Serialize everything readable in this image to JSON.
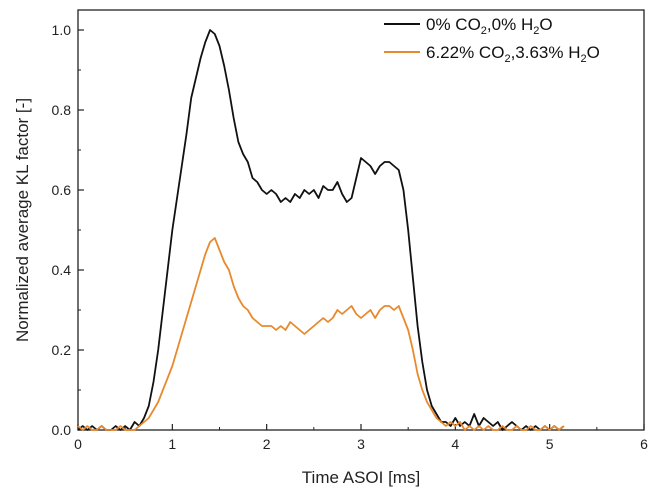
{
  "chart_data": {
    "type": "line",
    "title": "",
    "xlabel": "Time ASOI [ms]",
    "ylabel": "Normalized average KL factor [-]",
    "xlim": [
      0,
      6
    ],
    "ylim": [
      0,
      1.05
    ],
    "x_ticks": [
      "0",
      "1",
      "2",
      "3",
      "4",
      "5",
      "6"
    ],
    "y_ticks": [
      "0.0",
      "0.2",
      "0.4",
      "0.6",
      "0.8",
      "1.0"
    ],
    "grid": false,
    "legend_position": "top-right",
    "legend": [
      {
        "parts": [
          [
            "0% CO",
            ""
          ],
          [
            "2",
            "sub"
          ],
          [
            ",0% H",
            ""
          ],
          [
            "2",
            "sub"
          ],
          [
            "O",
            ""
          ]
        ]
      },
      {
        "parts": [
          [
            "6.22% CO",
            ""
          ],
          [
            "2",
            "sub"
          ],
          [
            ",3.63% H",
            ""
          ],
          [
            "2",
            "sub"
          ],
          [
            "O",
            ""
          ]
        ]
      }
    ],
    "series": [
      {
        "color": "#111111",
        "x": [
          0.0,
          0.05,
          0.1,
          0.15,
          0.2,
          0.25,
          0.3,
          0.35,
          0.4,
          0.45,
          0.5,
          0.55,
          0.6,
          0.65,
          0.7,
          0.75,
          0.8,
          0.85,
          0.9,
          0.95,
          1.0,
          1.05,
          1.1,
          1.15,
          1.2,
          1.25,
          1.3,
          1.35,
          1.4,
          1.45,
          1.5,
          1.55,
          1.6,
          1.65,
          1.7,
          1.75,
          1.8,
          1.85,
          1.9,
          1.95,
          2.0,
          2.05,
          2.1,
          2.15,
          2.2,
          2.25,
          2.3,
          2.35,
          2.4,
          2.45,
          2.5,
          2.55,
          2.6,
          2.65,
          2.7,
          2.75,
          2.8,
          2.85,
          2.9,
          2.95,
          3.0,
          3.05,
          3.1,
          3.15,
          3.2,
          3.25,
          3.3,
          3.35,
          3.4,
          3.45,
          3.5,
          3.55,
          3.6,
          3.65,
          3.7,
          3.75,
          3.8,
          3.85,
          3.9,
          3.95,
          4.0,
          4.05,
          4.1,
          4.15,
          4.2,
          4.25,
          4.3,
          4.35,
          4.4,
          4.45,
          4.5,
          4.55,
          4.6,
          4.65,
          4.7,
          4.75,
          4.8,
          4.85,
          4.9,
          4.95,
          5.0,
          5.05,
          5.1,
          5.15
        ],
        "y": [
          0.0,
          0.01,
          0.0,
          0.01,
          0.0,
          0.01,
          0.0,
          0.0,
          0.01,
          0.0,
          0.01,
          0.0,
          0.02,
          0.01,
          0.03,
          0.06,
          0.12,
          0.2,
          0.3,
          0.4,
          0.5,
          0.58,
          0.66,
          0.74,
          0.83,
          0.88,
          0.93,
          0.97,
          1.0,
          0.99,
          0.96,
          0.91,
          0.85,
          0.78,
          0.72,
          0.69,
          0.67,
          0.63,
          0.62,
          0.6,
          0.59,
          0.6,
          0.59,
          0.57,
          0.58,
          0.57,
          0.59,
          0.58,
          0.6,
          0.59,
          0.6,
          0.58,
          0.61,
          0.6,
          0.6,
          0.62,
          0.59,
          0.57,
          0.58,
          0.63,
          0.68,
          0.67,
          0.66,
          0.64,
          0.66,
          0.67,
          0.67,
          0.66,
          0.65,
          0.6,
          0.5,
          0.38,
          0.26,
          0.17,
          0.1,
          0.06,
          0.04,
          0.02,
          0.02,
          0.01,
          0.03,
          0.01,
          0.02,
          0.01,
          0.04,
          0.01,
          0.03,
          0.02,
          0.01,
          0.02,
          0.0,
          0.01,
          0.02,
          0.01,
          0.0,
          0.01,
          0.0,
          0.01,
          0.0,
          0.01,
          0.0,
          0.01,
          0.0,
          0.01
        ]
      },
      {
        "color": "#E8892E",
        "x": [
          0.0,
          0.05,
          0.1,
          0.15,
          0.2,
          0.25,
          0.3,
          0.35,
          0.4,
          0.45,
          0.5,
          0.55,
          0.6,
          0.65,
          0.7,
          0.75,
          0.8,
          0.85,
          0.9,
          0.95,
          1.0,
          1.05,
          1.1,
          1.15,
          1.2,
          1.25,
          1.3,
          1.35,
          1.4,
          1.45,
          1.5,
          1.55,
          1.6,
          1.65,
          1.7,
          1.75,
          1.8,
          1.85,
          1.9,
          1.95,
          2.0,
          2.05,
          2.1,
          2.15,
          2.2,
          2.25,
          2.3,
          2.35,
          2.4,
          2.45,
          2.5,
          2.55,
          2.6,
          2.65,
          2.7,
          2.75,
          2.8,
          2.85,
          2.9,
          2.95,
          3.0,
          3.05,
          3.1,
          3.15,
          3.2,
          3.25,
          3.3,
          3.35,
          3.4,
          3.45,
          3.5,
          3.55,
          3.6,
          3.65,
          3.7,
          3.75,
          3.8,
          3.85,
          3.9,
          3.95,
          4.0,
          4.05,
          4.1,
          4.15,
          4.2,
          4.25,
          4.3,
          4.35,
          4.4,
          4.45,
          4.5,
          4.55,
          4.6,
          4.65,
          4.7,
          4.75,
          4.8,
          4.85,
          4.9,
          4.95,
          5.0,
          5.05,
          5.1,
          5.15
        ],
        "y": [
          0.01,
          0.0,
          0.01,
          0.0,
          0.0,
          0.01,
          0.0,
          0.0,
          0.0,
          0.01,
          0.0,
          0.0,
          0.0,
          0.01,
          0.02,
          0.03,
          0.05,
          0.07,
          0.1,
          0.13,
          0.16,
          0.2,
          0.24,
          0.28,
          0.32,
          0.36,
          0.4,
          0.44,
          0.47,
          0.48,
          0.45,
          0.42,
          0.4,
          0.36,
          0.33,
          0.31,
          0.3,
          0.28,
          0.27,
          0.26,
          0.26,
          0.26,
          0.25,
          0.26,
          0.25,
          0.27,
          0.26,
          0.25,
          0.24,
          0.25,
          0.26,
          0.27,
          0.28,
          0.27,
          0.28,
          0.3,
          0.29,
          0.3,
          0.31,
          0.29,
          0.28,
          0.29,
          0.3,
          0.28,
          0.3,
          0.31,
          0.31,
          0.3,
          0.31,
          0.28,
          0.25,
          0.2,
          0.14,
          0.1,
          0.07,
          0.05,
          0.03,
          0.02,
          0.01,
          0.02,
          0.01,
          0.02,
          0.0,
          0.01,
          0.0,
          0.01,
          0.0,
          0.01,
          0.0,
          0.0,
          0.01,
          0.0,
          0.0,
          0.01,
          0.0,
          0.0,
          0.01,
          0.0,
          0.0,
          0.01,
          0.0,
          0.01,
          0.0,
          0.01
        ]
      }
    ]
  }
}
